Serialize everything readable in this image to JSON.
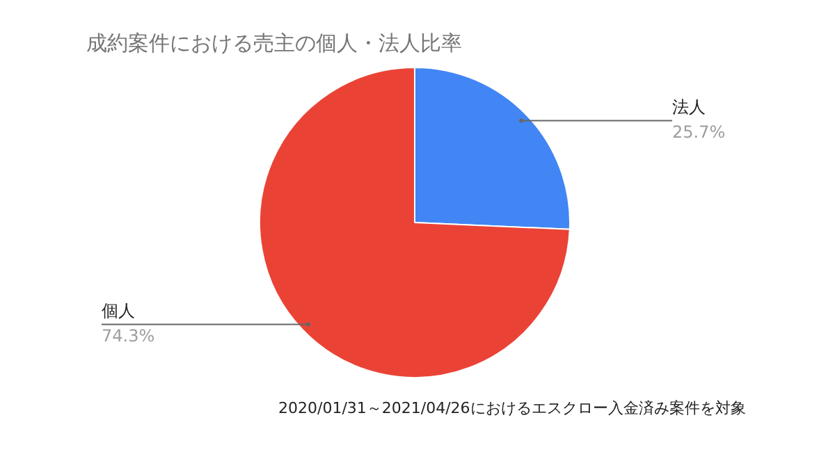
{
  "chart_data": {
    "type": "pie",
    "title": "成約案件における売主の個人・法人比率",
    "categories": [
      "法人",
      "個人"
    ],
    "values": [
      25.7,
      74.3
    ],
    "value_labels": [
      "25.7%",
      "74.3%"
    ],
    "colors": [
      "#4285f4",
      "#ea4335"
    ],
    "legend": false,
    "annotations": [
      "2020/01/31～2021/04/26におけるエスクロー入金済み案件を対象"
    ]
  }
}
